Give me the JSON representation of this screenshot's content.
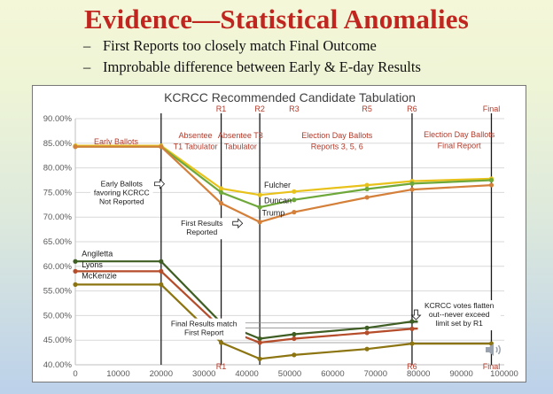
{
  "slide": {
    "title": "Evidence—Statistical Anomalies",
    "bullets": [
      "First Reports too closely match Final Outcome",
      "Improbable difference between Early & E-day Results"
    ],
    "bullet_marker": "–"
  },
  "colors": {
    "title": "#c0261f",
    "annotation_red": "#b33a2a",
    "fulcher": "#e8c21a",
    "duncan": "#6fa83a",
    "trump": "#d4803a",
    "angiletta": "#3f5e24",
    "lyons": "#b54c2a",
    "mckenzie": "#8c7410"
  },
  "chart_data": {
    "type": "line",
    "title": "KCRCC Recommended Candidate Tabulation",
    "xlim": [
      0,
      100000
    ],
    "ylim": [
      40,
      90
    ],
    "x_ticks": [
      0,
      10000,
      20000,
      30000,
      40000,
      50000,
      60000,
      70000,
      80000,
      90000,
      100000
    ],
    "x_tick_labels": [
      "0",
      "10000",
      "20000",
      "30000",
      "40000",
      "50000",
      "60000",
      "70000",
      "80000",
      "90000",
      "100000"
    ],
    "y_ticks": [
      40,
      45,
      50,
      55,
      60,
      65,
      70,
      75,
      80,
      85,
      90
    ],
    "y_tick_labels": [
      "40.00%",
      "45.00%",
      "50.00%",
      "55.00%",
      "60.00%",
      "65.00%",
      "70.00%",
      "75.00%",
      "80.00%",
      "85.00%",
      "90.00%"
    ],
    "grid": "horizontal",
    "legend": "none",
    "vertical_markers": [
      {
        "x": 20000
      },
      {
        "x": 34000
      },
      {
        "x": 43000
      },
      {
        "x": 78500
      },
      {
        "x": 97000
      }
    ],
    "top_markers": [
      {
        "x": 34000,
        "label": "R1"
      },
      {
        "x": 43000,
        "label": "R2"
      },
      {
        "x": 51000,
        "label": "R3"
      },
      {
        "x": 68000,
        "label": "R5"
      },
      {
        "x": 78500,
        "label": "R6"
      },
      {
        "x": 97000,
        "label": "Final"
      }
    ],
    "bottom_markers": [
      {
        "x": 34000,
        "label": "R1"
      },
      {
        "x": 78500,
        "label": "R6"
      },
      {
        "x": 97000,
        "label": "Final"
      }
    ],
    "section_labels": [
      {
        "text": "Early Ballots",
        "x": 9500,
        "y": 84.8
      },
      {
        "text": "Absentee",
        "x": 28000,
        "y": 86.0
      },
      {
        "text": "T1 Tabulator",
        "x": 28000,
        "y": 83.8
      },
      {
        "text": "Absentee T3",
        "x": 38500,
        "y": 86.0
      },
      {
        "text": "Tabulator",
        "x": 38500,
        "y": 83.8
      },
      {
        "text": "Election Day Ballots",
        "x": 61000,
        "y": 86.0
      },
      {
        "text": "Reports 3, 5, 6",
        "x": 61000,
        "y": 83.8
      },
      {
        "text": "Election Day Ballots",
        "x": 89500,
        "y": 86.2
      },
      {
        "text": "Final Report",
        "x": 89500,
        "y": 84.0
      }
    ],
    "series": [
      {
        "name": "Fulcher",
        "x": [
          0,
          20000,
          34000,
          43000,
          51000,
          68000,
          78500,
          97000
        ],
        "values": [
          84.5,
          84.5,
          75.8,
          74.5,
          75.2,
          76.5,
          77.3,
          77.8
        ]
      },
      {
        "name": "Duncan",
        "x": [
          0,
          20000,
          34000,
          43000,
          51000,
          68000,
          78500,
          97000
        ],
        "values": [
          84.3,
          84.3,
          75.0,
          72.0,
          73.5,
          75.7,
          76.8,
          77.5
        ]
      },
      {
        "name": "Trump",
        "x": [
          0,
          20000,
          34000,
          43000,
          51000,
          68000,
          78500,
          97000
        ],
        "values": [
          84.3,
          84.3,
          72.8,
          69.0,
          71.0,
          74.0,
          75.6,
          76.5
        ]
      },
      {
        "name": "Angiletta",
        "x": [
          0,
          20000,
          34000,
          43000,
          51000,
          68000,
          78500,
          97000
        ],
        "values": [
          61.0,
          61.0,
          48.5,
          45.3,
          46.2,
          47.5,
          48.8,
          48.8
        ]
      },
      {
        "name": "Lyons",
        "x": [
          0,
          20000,
          34000,
          43000,
          51000,
          68000,
          78500,
          97000
        ],
        "values": [
          59.0,
          59.0,
          47.5,
          44.5,
          45.3,
          46.5,
          47.3,
          47.8
        ]
      },
      {
        "name": "McKenzie",
        "x": [
          0,
          20000,
          34000,
          43000,
          51000,
          68000,
          78500,
          97000
        ],
        "values": [
          56.3,
          56.3,
          44.5,
          41.2,
          42.0,
          43.2,
          44.3,
          44.3
        ]
      }
    ],
    "series_labels": [
      {
        "text": "Fulcher",
        "x": 44000,
        "y": 76.0
      },
      {
        "text": "Duncan",
        "x": 44000,
        "y": 72.8
      },
      {
        "text": "Trump",
        "x": 43500,
        "y": 70.3
      },
      {
        "text": "Angiletta",
        "x": 1500,
        "y": 62.0
      },
      {
        "text": "Lyons",
        "x": 1500,
        "y": 59.8
      },
      {
        "text": "McKenzie",
        "x": 1500,
        "y": 57.5
      }
    ],
    "annotations": [
      {
        "lines": [
          "Early Ballots",
          "favoring KCRCC",
          "Not Reported"
        ],
        "x": 10800,
        "y": 76.2,
        "arrow": "right"
      },
      {
        "lines": [
          "First Results",
          "Reported"
        ],
        "x": 29500,
        "y": 68.2,
        "arrow": "right"
      },
      {
        "lines": [
          "Final Results match",
          "First Report"
        ],
        "x": 30000,
        "y": 47.8,
        "arrow": "none"
      },
      {
        "lines": [
          "KCRCC votes flatten",
          "out--never exceed",
          "limit set by R1"
        ],
        "x": 89500,
        "y": 51.5,
        "arrow": "down"
      }
    ]
  }
}
